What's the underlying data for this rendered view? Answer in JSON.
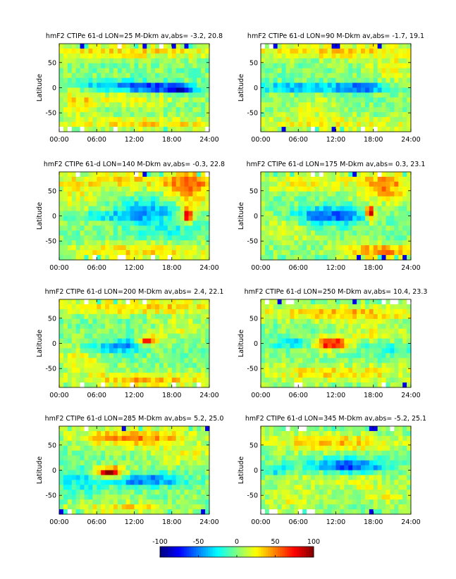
{
  "figure": {
    "ylabel": "Latitude",
    "x_tick_labels": [
      "00:00",
      "06:00",
      "12:00",
      "18:00",
      "24:00"
    ],
    "y_tick_labels": [
      "50",
      "0",
      "-50"
    ]
  },
  "colorbar": {
    "min": -100,
    "max": 100,
    "tick_labels": [
      "-100",
      "-50",
      "0",
      "50",
      "100"
    ]
  },
  "chart_data": [
    {
      "type": "heatmap",
      "title": "hmF2 CTIPe 61-d  LON=25 M-Dkm av,abs= -3.2, 20.8",
      "xlabel": "",
      "ylabel": "Latitude",
      "xlim": [
        0,
        24
      ],
      "ylim": [
        -87.5,
        87.5
      ],
      "x_ticks": [
        0,
        6,
        12,
        18,
        24
      ],
      "y_ticks": [
        50,
        0,
        -50
      ],
      "value_range": [
        -100,
        100
      ],
      "mean": -3.2,
      "abs_mean": 20.8,
      "features": [
        {
          "time": 15,
          "lat": 0,
          "value": -55,
          "sigma_t": 3.5,
          "sigma_lat": 6
        },
        {
          "time": 19.5,
          "lat": -3,
          "value": -70,
          "sigma_t": 1.8,
          "sigma_lat": 5
        },
        {
          "time": 12,
          "lat": 2,
          "value": -35,
          "sigma_t": 5,
          "sigma_lat": 8
        },
        {
          "time": 6,
          "lat": 3,
          "value": -25,
          "sigma_t": 3,
          "sigma_lat": 8
        },
        {
          "time": 11,
          "lat": -20,
          "value": 20,
          "sigma_t": 6,
          "sigma_lat": 15
        },
        {
          "time": 12,
          "lat": 72,
          "value": 30,
          "sigma_t": 14,
          "sigma_lat": 10
        },
        {
          "time": 15,
          "lat": -72,
          "value": 30,
          "sigma_t": 10,
          "sigma_lat": 10
        },
        {
          "time": 3,
          "lat": -25,
          "value": 25,
          "sigma_t": 2,
          "sigma_lat": 20
        }
      ]
    },
    {
      "type": "heatmap",
      "title": "hmF2 CTIPe 61-d  LON=90 M-Dkm av,abs= -1.7, 19.1",
      "xlabel": "",
      "ylabel": "Latitude",
      "xlim": [
        0,
        24
      ],
      "ylim": [
        -87.5,
        87.5
      ],
      "x_ticks": [
        0,
        6,
        12,
        18,
        24
      ],
      "y_ticks": [
        50,
        0,
        -50
      ],
      "value_range": [
        -100,
        100
      ],
      "mean": -1.7,
      "abs_mean": 19.1,
      "features": [
        {
          "time": 11,
          "lat": 0,
          "value": -45,
          "sigma_t": 6,
          "sigma_lat": 6
        },
        {
          "time": 16.5,
          "lat": 0,
          "value": -55,
          "sigma_t": 2,
          "sigma_lat": 5
        },
        {
          "time": 4,
          "lat": 0,
          "value": -25,
          "sigma_t": 3,
          "sigma_lat": 6
        },
        {
          "time": 12,
          "lat": 72,
          "value": 30,
          "sigma_t": 14,
          "sigma_lat": 10
        },
        {
          "time": 12,
          "lat": -72,
          "value": 25,
          "sigma_t": 14,
          "sigma_lat": 10
        },
        {
          "time": 21,
          "lat": 40,
          "value": 20,
          "sigma_t": 3,
          "sigma_lat": 20
        },
        {
          "time": 8,
          "lat": -40,
          "value": 15,
          "sigma_t": 4,
          "sigma_lat": 15
        }
      ]
    },
    {
      "type": "heatmap",
      "title": "hmF2 CTIPe 61-d  LON=140 M-Dkm av,abs= -0.3, 22.8",
      "xlabel": "",
      "ylabel": "Latitude",
      "xlim": [
        0,
        24
      ],
      "ylim": [
        -87.5,
        87.5
      ],
      "x_ticks": [
        0,
        6,
        12,
        18,
        24
      ],
      "y_ticks": [
        50,
        0,
        -50
      ],
      "value_range": [
        -100,
        100
      ],
      "mean": -0.3,
      "abs_mean": 22.8,
      "features": [
        {
          "time": 14,
          "lat": 10,
          "value": -45,
          "sigma_t": 3,
          "sigma_lat": 15
        },
        {
          "time": 8,
          "lat": 0,
          "value": -30,
          "sigma_t": 4,
          "sigma_lat": 6
        },
        {
          "time": 20.5,
          "lat": 2,
          "value": 95,
          "sigma_t": 0.5,
          "sigma_lat": 10
        },
        {
          "time": 21,
          "lat": 55,
          "value": 45,
          "sigma_t": 2.5,
          "sigma_lat": 25
        },
        {
          "time": 12,
          "lat": 70,
          "value": 30,
          "sigma_t": 10,
          "sigma_lat": 12
        },
        {
          "time": 14,
          "lat": -70,
          "value": 30,
          "sigma_t": 10,
          "sigma_lat": 12
        },
        {
          "time": 3,
          "lat": 40,
          "value": 20,
          "sigma_t": 3,
          "sigma_lat": 20
        },
        {
          "time": 17,
          "lat": -30,
          "value": -20,
          "sigma_t": 4,
          "sigma_lat": 15
        }
      ]
    },
    {
      "type": "heatmap",
      "title": "hmF2 CTIPe 61-d  LON=175 M-Dkm av,abs=  0.3, 23.1",
      "xlabel": "",
      "ylabel": "Latitude",
      "xlim": [
        0,
        24
      ],
      "ylim": [
        -87.5,
        87.5
      ],
      "x_ticks": [
        0,
        6,
        12,
        18,
        24
      ],
      "y_ticks": [
        50,
        0,
        -50
      ],
      "value_range": [
        -100,
        100
      ],
      "mean": 0.3,
      "abs_mean": 23.1,
      "features": [
        {
          "time": 11,
          "lat": 0,
          "value": -60,
          "sigma_t": 4,
          "sigma_lat": 12
        },
        {
          "time": 17.5,
          "lat": 5,
          "value": 95,
          "sigma_t": 0.5,
          "sigma_lat": 10
        },
        {
          "time": 20,
          "lat": 60,
          "value": 45,
          "sigma_t": 3,
          "sigma_lat": 22
        },
        {
          "time": 19,
          "lat": -70,
          "value": 50,
          "sigma_t": 4,
          "sigma_lat": 10
        },
        {
          "time": 8,
          "lat": 65,
          "value": 25,
          "sigma_t": 6,
          "sigma_lat": 12
        },
        {
          "time": 4,
          "lat": -30,
          "value": 20,
          "sigma_t": 3,
          "sigma_lat": 20
        }
      ]
    },
    {
      "type": "heatmap",
      "title": "hmF2 CTIPe 61-d  LON=200 M-Dkm av,abs=  2.4, 22.1",
      "xlabel": "",
      "ylabel": "Latitude",
      "xlim": [
        0,
        24
      ],
      "ylim": [
        -87.5,
        87.5
      ],
      "x_ticks": [
        0,
        6,
        12,
        18,
        24
      ],
      "y_ticks": [
        50,
        0,
        -50
      ],
      "value_range": [
        -100,
        100
      ],
      "mean": 2.4,
      "abs_mean": 22.1,
      "features": [
        {
          "time": 14,
          "lat": 5,
          "value": 85,
          "sigma_t": 1.2,
          "sigma_lat": 7
        },
        {
          "time": 8,
          "lat": -10,
          "value": -40,
          "sigma_t": 3,
          "sigma_lat": 8
        },
        {
          "time": 12,
          "lat": 0,
          "value": -30,
          "sigma_t": 2,
          "sigma_lat": 10
        },
        {
          "time": 12,
          "lat": 72,
          "value": 35,
          "sigma_t": 12,
          "sigma_lat": 10
        },
        {
          "time": 14,
          "lat": -72,
          "value": 40,
          "sigma_t": 8,
          "sigma_lat": 10
        },
        {
          "time": 3,
          "lat": -30,
          "value": 20,
          "sigma_t": 3,
          "sigma_lat": 20
        },
        {
          "time": 20,
          "lat": 30,
          "value": 20,
          "sigma_t": 3,
          "sigma_lat": 15
        }
      ]
    },
    {
      "type": "heatmap",
      "title": "hmF2 CTIPe 61-d  LON=250 M-Dkm av,abs= 10.4, 23.3",
      "xlabel": "",
      "ylabel": "Latitude",
      "xlim": [
        0,
        24
      ],
      "ylim": [
        -87.5,
        87.5
      ],
      "x_ticks": [
        0,
        6,
        12,
        18,
        24
      ],
      "y_ticks": [
        50,
        0,
        -50
      ],
      "value_range": [
        -100,
        100
      ],
      "mean": 10.4,
      "abs_mean": 23.3,
      "features": [
        {
          "time": 11,
          "lat": 0,
          "value": 90,
          "sigma_t": 2,
          "sigma_lat": 8
        },
        {
          "time": 6,
          "lat": 0,
          "value": -35,
          "sigma_t": 3,
          "sigma_lat": 6
        },
        {
          "time": 12,
          "lat": 60,
          "value": 40,
          "sigma_t": 10,
          "sigma_lat": 10
        },
        {
          "time": 12,
          "lat": -60,
          "value": 30,
          "sigma_t": 10,
          "sigma_lat": 12
        },
        {
          "time": 18,
          "lat": 20,
          "value": 20,
          "sigma_t": 4,
          "sigma_lat": 15
        },
        {
          "time": 20,
          "lat": -10,
          "value": -20,
          "sigma_t": 3,
          "sigma_lat": 10
        }
      ]
    },
    {
      "type": "heatmap",
      "title": "hmF2 CTIPe 61-d  LON=285 M-Dkm av,abs=  5.2, 25.0",
      "xlabel": "",
      "ylabel": "Latitude",
      "xlim": [
        0,
        24
      ],
      "ylim": [
        -87.5,
        87.5
      ],
      "x_ticks": [
        0,
        6,
        12,
        18,
        24
      ],
      "y_ticks": [
        50,
        0,
        -50
      ],
      "value_range": [
        -100,
        100
      ],
      "mean": 5.2,
      "abs_mean": 25.0,
      "features": [
        {
          "time": 8,
          "lat": -5,
          "value": 100,
          "sigma_t": 1.5,
          "sigma_lat": 8
        },
        {
          "time": 14,
          "lat": -20,
          "value": -60,
          "sigma_t": 4,
          "sigma_lat": 8
        },
        {
          "time": 12,
          "lat": 65,
          "value": 50,
          "sigma_t": 6,
          "sigma_lat": 12
        },
        {
          "time": 3,
          "lat": -20,
          "value": -25,
          "sigma_t": 3,
          "sigma_lat": 20
        },
        {
          "time": 10,
          "lat": -75,
          "value": 30,
          "sigma_t": 6,
          "sigma_lat": 8
        },
        {
          "time": 20,
          "lat": 30,
          "value": 20,
          "sigma_t": 4,
          "sigma_lat": 15
        }
      ]
    },
    {
      "type": "heatmap",
      "title": "hmF2 CTIPe 61-d  LON=345 M-Dkm av,abs= -5.2, 25.1",
      "xlabel": "",
      "ylabel": "Latitude",
      "xlim": [
        0,
        24
      ],
      "ylim": [
        -87.5,
        87.5
      ],
      "x_ticks": [
        0,
        6,
        12,
        18,
        24
      ],
      "y_ticks": [
        50,
        0,
        -50
      ],
      "value_range": [
        -100,
        100
      ],
      "mean": -5.2,
      "abs_mean": 25.1,
      "features": [
        {
          "time": 14,
          "lat": 8,
          "value": -70,
          "sigma_t": 4,
          "sigma_lat": 10
        },
        {
          "time": 2,
          "lat": 0,
          "value": -30,
          "sigma_t": 2,
          "sigma_lat": 8
        },
        {
          "time": 12,
          "lat": 55,
          "value": 35,
          "sigma_t": 8,
          "sigma_lat": 12
        },
        {
          "time": 12,
          "lat": -20,
          "value": 20,
          "sigma_t": 6,
          "sigma_lat": 15
        },
        {
          "time": 20,
          "lat": -50,
          "value": 20,
          "sigma_t": 3,
          "sigma_lat": 15
        },
        {
          "time": 5,
          "lat": -60,
          "value": 20,
          "sigma_t": 3,
          "sigma_lat": 12
        }
      ]
    }
  ]
}
